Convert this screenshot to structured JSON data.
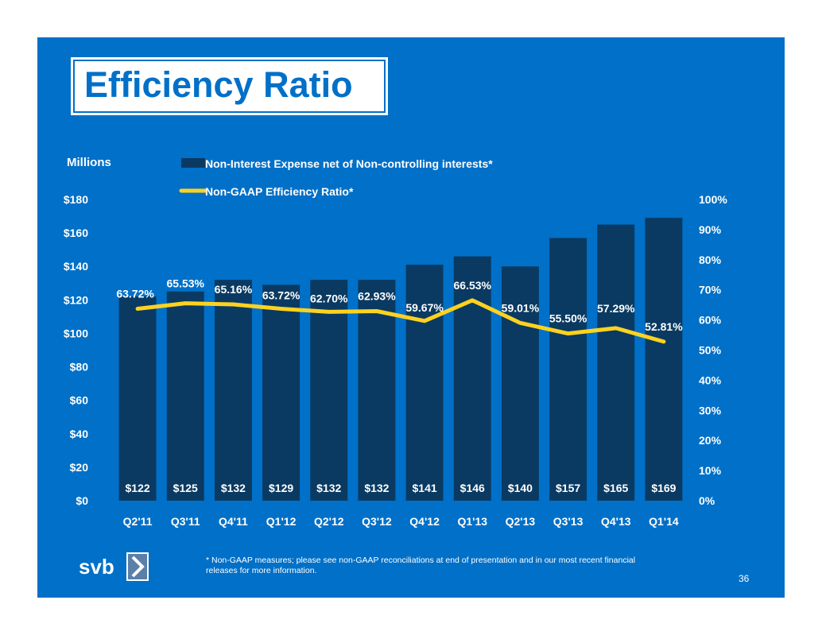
{
  "slide": {
    "title": "Efficiency Ratio",
    "footnote": "* Non-GAAP measures; please see non-GAAP reconciliations at end of presentation and in our most recent financial releases for more information.",
    "page_number": "36",
    "logo_text": "svb"
  },
  "colors": {
    "background": "#0070C8",
    "bar": "#0A3A62",
    "line": "#FFD21F",
    "text": "#FFFFFF"
  },
  "chart_data": {
    "type": "bar",
    "ylabel": "Millions",
    "categories": [
      "Q2'11",
      "Q3'11",
      "Q4'11",
      "Q1'12",
      "Q2'12",
      "Q3'12",
      "Q4'12",
      "Q1'13",
      "Q2'13",
      "Q3'13",
      "Q4'13",
      "Q1'14"
    ],
    "series": [
      {
        "name": "Non-Interest Expense net of Non-controlling interests*",
        "type": "bar",
        "axis": "left",
        "values": [
          122,
          125,
          132,
          129,
          132,
          132,
          141,
          146,
          140,
          157,
          165,
          169
        ],
        "labels": [
          "$122",
          "$125",
          "$132",
          "$129",
          "$132",
          "$132",
          "$141",
          "$146",
          "$140",
          "$157",
          "$165",
          "$169"
        ]
      },
      {
        "name": "Non-GAAP Efficiency Ratio*",
        "type": "line",
        "axis": "right",
        "values": [
          63.72,
          65.53,
          65.16,
          63.72,
          62.7,
          62.93,
          59.67,
          66.53,
          59.01,
          55.5,
          57.29,
          52.81
        ],
        "labels": [
          "63.72%",
          "65.53%",
          "65.16%",
          "63.72%",
          "62.70%",
          "62.93%",
          "59.67%",
          "66.53%",
          "59.01%",
          "55.50%",
          "57.29%",
          "52.81%"
        ]
      }
    ],
    "y_left": {
      "range": [
        0,
        180
      ],
      "ticks": [
        "$0",
        "$20",
        "$40",
        "$60",
        "$80",
        "$100",
        "$120",
        "$140",
        "$160",
        "$180"
      ]
    },
    "y_right": {
      "range": [
        0,
        100
      ],
      "ticks": [
        "0%",
        "10%",
        "20%",
        "30%",
        "40%",
        "50%",
        "60%",
        "70%",
        "80%",
        "90%",
        "100%"
      ]
    },
    "legend_placement": "top-center",
    "grid": false
  }
}
